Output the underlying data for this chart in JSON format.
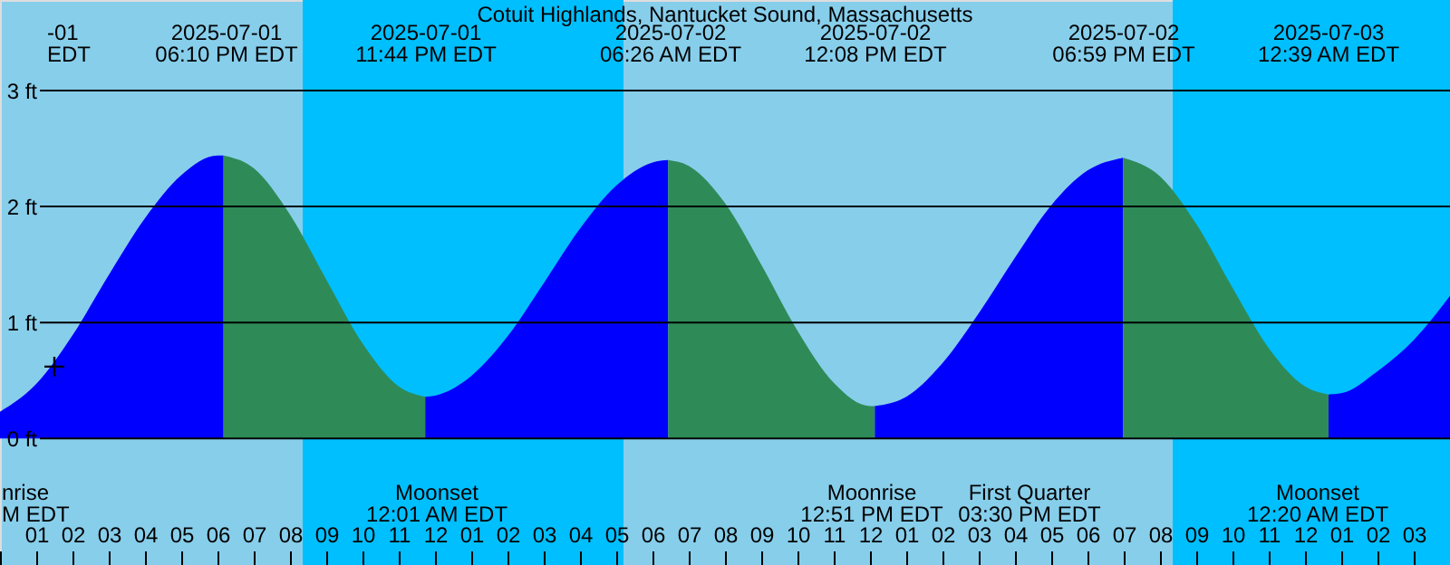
{
  "chart_data": {
    "type": "area",
    "title": "Cotuit Highlands, Nantucket Sound, Massachusetts",
    "xlim": [
      "2025-07-01T12:00",
      "2025-07-03T04:00"
    ],
    "ylim": [
      -1.09,
      3.78
    ],
    "xticks": [
      {
        "value": "2025-07-01T12:00",
        "label": null
      },
      {
        "value": "2025-07-01T13:00",
        "label": "01"
      },
      {
        "value": "2025-07-01T14:00",
        "label": "02"
      },
      {
        "value": "2025-07-01T15:00",
        "label": "03"
      },
      {
        "value": "2025-07-01T16:00",
        "label": "04"
      },
      {
        "value": "2025-07-01T17:00",
        "label": "05"
      },
      {
        "value": "2025-07-01T18:00",
        "label": "06"
      },
      {
        "value": "2025-07-01T19:00",
        "label": "07"
      },
      {
        "value": "2025-07-01T20:00",
        "label": "08"
      },
      {
        "value": "2025-07-01T21:00",
        "label": "09"
      },
      {
        "value": "2025-07-01T22:00",
        "label": "10"
      },
      {
        "value": "2025-07-01T23:00",
        "label": "11"
      },
      {
        "value": "2025-07-02T00:00",
        "label": "12"
      },
      {
        "value": "2025-07-02T01:00",
        "label": "01"
      },
      {
        "value": "2025-07-02T02:00",
        "label": "02"
      },
      {
        "value": "2025-07-02T03:00",
        "label": "03"
      },
      {
        "value": "2025-07-02T04:00",
        "label": "04"
      },
      {
        "value": "2025-07-02T05:00",
        "label": "05"
      },
      {
        "value": "2025-07-02T06:00",
        "label": "06"
      },
      {
        "value": "2025-07-02T07:00",
        "label": "07"
      },
      {
        "value": "2025-07-02T08:00",
        "label": "08"
      },
      {
        "value": "2025-07-02T09:00",
        "label": "09"
      },
      {
        "value": "2025-07-02T10:00",
        "label": "10"
      },
      {
        "value": "2025-07-02T11:00",
        "label": "11"
      },
      {
        "value": "2025-07-02T12:00",
        "label": "12"
      },
      {
        "value": "2025-07-02T13:00",
        "label": "01"
      },
      {
        "value": "2025-07-02T14:00",
        "label": "02"
      },
      {
        "value": "2025-07-02T15:00",
        "label": "03"
      },
      {
        "value": "2025-07-02T16:00",
        "label": "04"
      },
      {
        "value": "2025-07-02T17:00",
        "label": "05"
      },
      {
        "value": "2025-07-02T18:00",
        "label": "06"
      },
      {
        "value": "2025-07-02T19:00",
        "label": "07"
      },
      {
        "value": "2025-07-02T20:00",
        "label": "08"
      },
      {
        "value": "2025-07-02T21:00",
        "label": "09"
      },
      {
        "value": "2025-07-02T22:00",
        "label": "10"
      },
      {
        "value": "2025-07-02T23:00",
        "label": "11"
      },
      {
        "value": "2025-07-03T00:00",
        "label": "12"
      },
      {
        "value": "2025-07-03T01:00",
        "label": "01"
      },
      {
        "value": "2025-07-03T02:00",
        "label": "02"
      },
      {
        "value": "2025-07-03T03:00",
        "label": "03"
      },
      {
        "value": "2025-07-03T04:00",
        "label": null
      }
    ],
    "yticks": [
      {
        "value": 0,
        "label": "0 ft"
      },
      {
        "value": 1,
        "label": "1 ft"
      },
      {
        "value": 2,
        "label": "2 ft"
      },
      {
        "value": 3,
        "label": "3 ft"
      }
    ],
    "grid": "y",
    "bands": [
      {
        "axis": "x",
        "from": "2025-07-01T20:21",
        "to": "2025-07-02T05:12",
        "color": "#00bfff"
      },
      {
        "axis": "x",
        "from": "2025-07-02T20:21",
        "to": "2025-07-03T04:00",
        "color": "#00bfff"
      }
    ],
    "series": [
      {
        "color": "#0000ff",
        "x": [
          "2025-07-01T12:00",
          "2025-07-01T13:00",
          "2025-07-01T14:00",
          "2025-07-01T15:00",
          "2025-07-01T16:00",
          "2025-07-01T17:00",
          "2025-07-01T18:00",
          "2025-07-01T18:10"
        ],
        "values": [
          0.23,
          0.47,
          0.89,
          1.41,
          1.9,
          2.27,
          2.44,
          2.44
        ]
      },
      {
        "color": "#2e8b57",
        "x": [
          "2025-07-01T18:10",
          "2025-07-01T19:00",
          "2025-07-01T20:00",
          "2025-07-01T21:00",
          "2025-07-01T22:00",
          "2025-07-01T23:00",
          "2025-07-01T23:44"
        ],
        "values": [
          2.44,
          2.33,
          1.93,
          1.37,
          0.82,
          0.45,
          0.36
        ]
      },
      {
        "color": "#0000ff",
        "x": [
          "2025-07-01T23:44",
          "2025-07-02T00:00",
          "2025-07-02T01:00",
          "2025-07-02T02:00",
          "2025-07-02T03:00",
          "2025-07-02T04:00",
          "2025-07-02T05:00",
          "2025-07-02T06:00",
          "2025-07-02T06:26"
        ],
        "values": [
          0.36,
          0.37,
          0.54,
          0.88,
          1.34,
          1.81,
          2.18,
          2.38,
          2.4
        ]
      },
      {
        "color": "#2e8b57",
        "x": [
          "2025-07-02T06:26",
          "2025-07-02T07:00",
          "2025-07-02T08:00",
          "2025-07-02T09:00",
          "2025-07-02T10:00",
          "2025-07-02T11:00",
          "2025-07-02T12:00",
          "2025-07-02T12:08"
        ],
        "values": [
          2.4,
          2.35,
          2.03,
          1.5,
          0.93,
          0.48,
          0.28,
          0.28
        ]
      },
      {
        "color": "#0000ff",
        "x": [
          "2025-07-02T12:08",
          "2025-07-02T13:00",
          "2025-07-02T14:00",
          "2025-07-02T15:00",
          "2025-07-02T16:00",
          "2025-07-02T17:00",
          "2025-07-02T18:00",
          "2025-07-02T18:59"
        ],
        "values": [
          0.28,
          0.36,
          0.65,
          1.08,
          1.56,
          2.01,
          2.31,
          2.42
        ]
      },
      {
        "color": "#2e8b57",
        "x": [
          "2025-07-02T18:59",
          "2025-07-02T20:00",
          "2025-07-02T21:00",
          "2025-07-02T22:00",
          "2025-07-02T23:00",
          "2025-07-03T00:00",
          "2025-07-03T00:39"
        ],
        "values": [
          2.42,
          2.26,
          1.85,
          1.3,
          0.78,
          0.45,
          0.38
        ]
      },
      {
        "color": "#0000ff",
        "x": [
          "2025-07-03T00:39",
          "2025-07-03T01:00",
          "2025-07-03T02:00",
          "2025-07-03T03:00",
          "2025-07-03T04:00"
        ],
        "values": [
          0.38,
          0.39,
          0.58,
          0.85,
          1.23
        ]
      },
      {
        "type": "scatter",
        "marker": "cross",
        "color": "#000000",
        "x": [
          "2025-07-01T13:30"
        ],
        "values": [
          0.62
        ]
      }
    ],
    "annotations": [
      "-01\nEDT",
      "nrise\nM EDT",
      "2025-07-01\n06:10 PM EDT",
      "2025-07-01\n11:44 PM EDT",
      "2025-07-02\n06:26 AM EDT",
      "2025-07-02\n12:08 PM EDT",
      "2025-07-02\n06:59 PM EDT",
      "2025-07-03\n12:39 AM EDT",
      "Moonset\n12:01 AM EDT",
      "Moonrise\n12:51 PM EDT",
      "First Quarter\n03:30 PM EDT",
      "Moonset\n12:20 AM EDT"
    ]
  }
}
